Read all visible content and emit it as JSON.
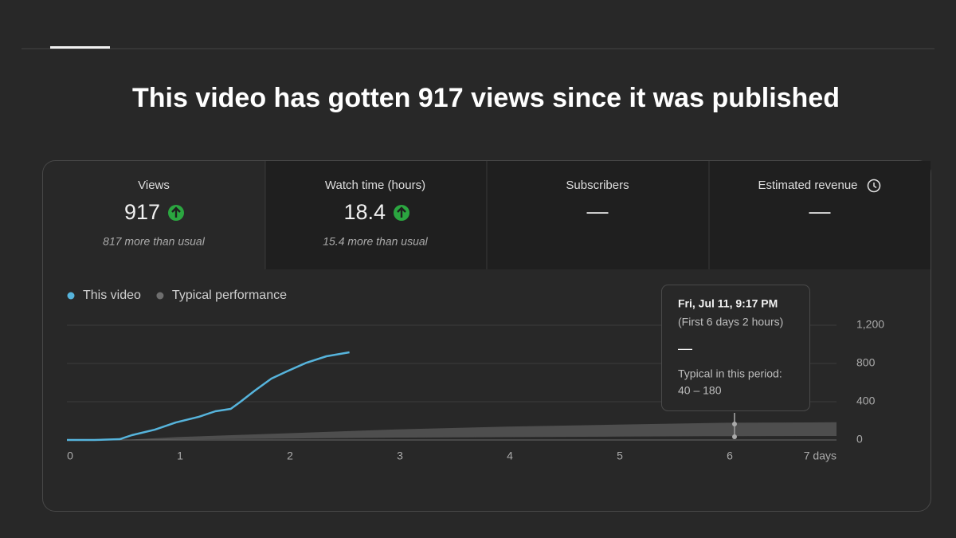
{
  "header": {
    "title": "This video has gotten 917 views since it was published"
  },
  "cards": [
    {
      "label": "Views",
      "value": "917",
      "note": "817 more than usual"
    },
    {
      "label": "Watch time (hours)",
      "value": "18.4",
      "note": "15.4 more than usual"
    },
    {
      "label": "Subscribers",
      "value": "—"
    },
    {
      "label": "Estimated revenue",
      "value": "—"
    }
  ],
  "chart_data": {
    "type": "line",
    "xlim": [
      0,
      7
    ],
    "xticks": [
      0,
      1,
      2,
      3,
      4,
      5,
      6,
      {
        "value": 7,
        "label": "7 days"
      }
    ],
    "ylim": [
      0,
      1200
    ],
    "yticks": [
      0,
      400,
      800,
      {
        "value": 1200,
        "label": "1,200"
      }
    ],
    "grid": true,
    "series": [
      {
        "name": "This video",
        "color": "#56b4dc",
        "x": [
          0,
          0.25,
          0.48,
          0.59,
          0.8,
          0.99,
          1.2,
          1.35,
          1.49,
          1.57,
          1.71,
          1.86,
          2.0,
          2.18,
          2.36,
          2.57
        ],
        "values": [
          0,
          0,
          8,
          50,
          108,
          183,
          242,
          300,
          325,
          392,
          517,
          642,
          717,
          808,
          875,
          917
        ]
      },
      {
        "name": "Typical performance",
        "color": "#6e6e6e",
        "x": [
          0,
          0.5,
          1,
          2,
          3,
          4,
          5,
          6,
          7
        ],
        "values_low": [
          0,
          0,
          5,
          15,
          25,
          30,
          35,
          40,
          42
        ],
        "values_high": [
          0,
          0,
          30,
          70,
          110,
          140,
          160,
          180,
          185
        ]
      }
    ],
    "tooltip": {
      "date": "Fri, Jul 11, 9:17 PM",
      "period": "(First 6 days 2 hours)",
      "value": "—",
      "typical_label": "Typical in this period:",
      "typical_range": "40 – 180"
    }
  }
}
